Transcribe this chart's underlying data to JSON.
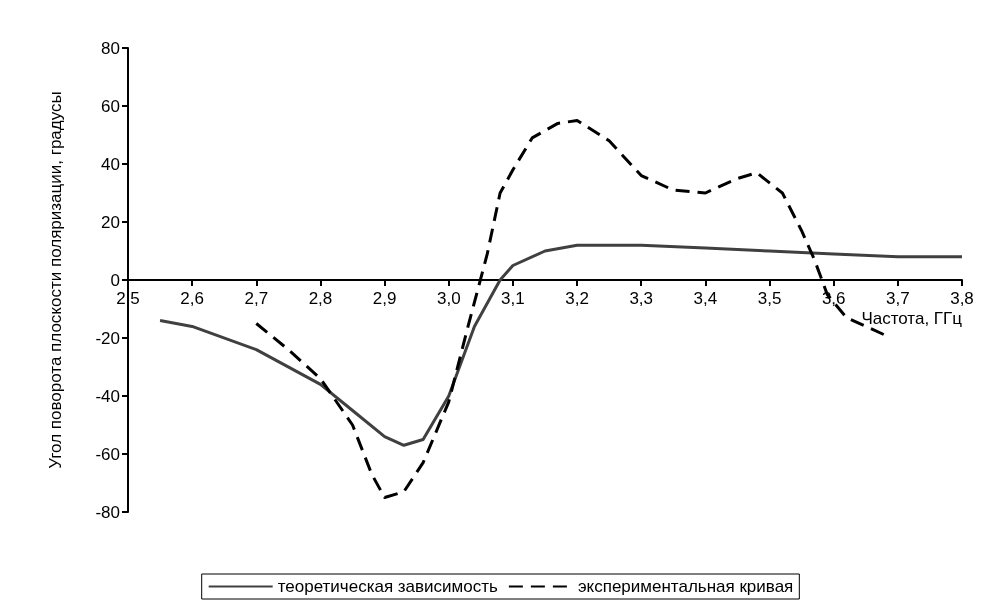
{
  "chart_data": {
    "type": "line",
    "xlabel": "Частота, ГГц",
    "ylabel": "Угол поворота плоскости поляризации, градусы",
    "xlim": [
      2.5,
      3.8
    ],
    "xticks": [
      {
        "value": 2.5,
        "label": "2,5"
      },
      {
        "value": 2.6,
        "label": "2,6"
      },
      {
        "value": 2.7,
        "label": "2,7"
      },
      {
        "value": 2.8,
        "label": "2,8"
      },
      {
        "value": 2.9,
        "label": "2,9"
      },
      {
        "value": 3.0,
        "label": "3,0"
      },
      {
        "value": 3.1,
        "label": "3,1"
      },
      {
        "value": 3.2,
        "label": "3,2"
      },
      {
        "value": 3.3,
        "label": "3,3"
      },
      {
        "value": 3.4,
        "label": "3,4"
      },
      {
        "value": 3.5,
        "label": "3,5"
      },
      {
        "value": 3.6,
        "label": "3,6"
      },
      {
        "value": 3.7,
        "label": "3,7"
      },
      {
        "value": 3.8,
        "label": "3,8"
      }
    ],
    "ylim": [
      -80,
      80
    ],
    "yticks": [
      -80,
      -60,
      -40,
      -20,
      0,
      20,
      40,
      60,
      80
    ],
    "legend": "bottom",
    "marker": "none",
    "series": [
      {
        "name": "теоретическая зависимость",
        "color": "#404040",
        "line_style": "solid",
        "x": [
          2.55,
          2.6,
          2.7,
          2.8,
          2.85,
          2.9,
          2.93,
          2.96,
          3.0,
          3.04,
          3.08,
          3.1,
          3.15,
          3.2,
          3.3,
          3.4,
          3.5,
          3.6,
          3.7,
          3.8
        ],
        "values": [
          -14,
          -16,
          -24,
          -36,
          -45,
          -54,
          -57,
          -55,
          -40,
          -16,
          0,
          5,
          10,
          12,
          12,
          11,
          10,
          9,
          8,
          8
        ]
      },
      {
        "name": "экспериментальная кривая",
        "color": "#000000",
        "line_style": "dashed",
        "x": [
          2.7,
          2.75,
          2.8,
          2.85,
          2.88,
          2.9,
          2.93,
          2.96,
          3.0,
          3.03,
          3.06,
          3.08,
          3.1,
          3.13,
          3.17,
          3.2,
          3.25,
          3.3,
          3.35,
          3.4,
          3.45,
          3.48,
          3.52,
          3.55,
          3.57,
          3.59,
          3.62,
          3.65,
          3.68
        ],
        "values": [
          -15,
          -24,
          -34,
          -50,
          -67,
          -75,
          -73,
          -63,
          -42,
          -16,
          9,
          30,
          38,
          49,
          54,
          55,
          48,
          36,
          31,
          30,
          35,
          37,
          30,
          17,
          7,
          -5,
          -13,
          -16,
          -19
        ]
      }
    ]
  }
}
